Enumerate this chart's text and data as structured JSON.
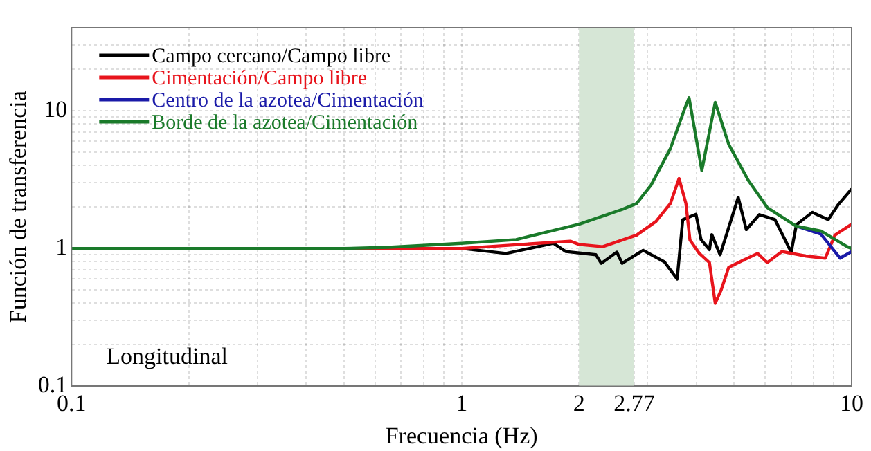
{
  "chart_data": {
    "type": "line",
    "xlabel": "Frecuencia (Hz)",
    "ylabel": "Función de transferencia",
    "log": "xy",
    "grid": true,
    "legend": "top left",
    "line_style": "solid",
    "marker": "none",
    "xlim": [
      0.1,
      10
    ],
    "ylim": [
      0.1,
      40
    ],
    "xticks": [
      0.1,
      {
        "value": 0.2,
        "label": null
      },
      {
        "value": 0.3,
        "label": null
      },
      {
        "value": 0.4,
        "label": null
      },
      {
        "value": 0.5,
        "label": null
      },
      {
        "value": 0.6,
        "label": null
      },
      {
        "value": 0.7,
        "label": null
      },
      {
        "value": 0.8,
        "label": null
      },
      {
        "value": 0.9,
        "label": null
      },
      1,
      2,
      2.77,
      {
        "value": 3,
        "label": null
      },
      {
        "value": 4,
        "label": null
      },
      {
        "value": 5,
        "label": null
      },
      {
        "value": 6,
        "label": null
      },
      {
        "value": 7,
        "label": null
      },
      {
        "value": 8,
        "label": null
      },
      {
        "value": 9,
        "label": null
      },
      10
    ],
    "yticks": [
      0.1,
      {
        "value": 0.2,
        "label": null
      },
      {
        "value": 0.3,
        "label": null
      },
      {
        "value": 0.4,
        "label": null
      },
      {
        "value": 0.5,
        "label": null
      },
      {
        "value": 0.6,
        "label": null
      },
      {
        "value": 0.7,
        "label": null
      },
      {
        "value": 0.8,
        "label": null
      },
      {
        "value": 0.9,
        "label": null
      },
      1,
      {
        "value": 2,
        "label": null
      },
      {
        "value": 3,
        "label": null
      },
      {
        "value": 4,
        "label": null
      },
      {
        "value": 5,
        "label": null
      },
      {
        "value": 6,
        "label": null
      },
      {
        "value": 7,
        "label": null
      },
      {
        "value": 8,
        "label": null
      },
      {
        "value": 9,
        "label": null
      },
      10,
      {
        "value": 20,
        "label": null
      },
      {
        "value": 30,
        "label": null
      },
      {
        "value": 40,
        "label": null
      }
    ],
    "bands": [
      {
        "axis": "x",
        "from": 2,
        "to": 2.77,
        "color": "#d6e6d6"
      }
    ],
    "annotations": [
      "Longitudinal"
    ],
    "series": [
      {
        "name": "Campo cercano/Campo libre",
        "color": "#000000",
        "x": [
          0.1,
          0.5,
          1,
          1.3,
          1.72,
          1.85,
          2.21,
          2.28,
          2.5,
          2.58,
          2.92,
          3.31,
          3.57,
          3.69,
          3.99,
          4.11,
          4.32,
          4.38,
          4.6,
          5.12,
          5.37,
          5.8,
          6.36,
          7.0,
          7.22,
          7.93,
          8.71,
          9.24,
          10
        ],
        "values": [
          1,
          1,
          1,
          0.92,
          1.09,
          0.95,
          0.9,
          0.78,
          0.94,
          0.78,
          0.97,
          0.8,
          0.6,
          1.62,
          1.77,
          1.16,
          0.98,
          1.26,
          0.9,
          2.35,
          1.37,
          1.76,
          1.62,
          0.94,
          1.49,
          1.83,
          1.62,
          2.08,
          2.7
        ]
      },
      {
        "name": "Cimentación/Campo libre",
        "color": "#e8141c",
        "x": [
          0.1,
          0.5,
          1,
          1.9,
          2,
          2.3,
          2.81,
          3.15,
          3.43,
          3.61,
          3.76,
          3.85,
          4.07,
          4.32,
          4.47,
          4.63,
          4.84,
          5.27,
          5.74,
          6.08,
          6.63,
          7.65,
          8.56,
          9.06,
          10
        ],
        "values": [
          1,
          1,
          1,
          1.13,
          1.07,
          1.03,
          1.25,
          1.57,
          2.12,
          3.22,
          2.12,
          1.15,
          0.92,
          0.79,
          0.4,
          0.5,
          0.73,
          0.82,
          0.92,
          0.79,
          0.95,
          0.88,
          0.85,
          1.25,
          1.5
        ]
      },
      {
        "name": "Centro de la azotea/Cimentación",
        "color": "#1a1aa8",
        "x": [
          7.22,
          8.34,
          9.34,
          10
        ],
        "values": [
          1.45,
          1.27,
          0.85,
          0.95
        ]
      },
      {
        "name": "Borde de la azotea/Cimentación",
        "color": "#1a7a2a",
        "x": [
          0.1,
          0.5,
          0.65,
          1,
          1.38,
          2,
          2.58,
          2.81,
          3.06,
          3.43,
          3.74,
          3.83,
          4.13,
          4.47,
          4.84,
          5.43,
          6.08,
          7.22,
          8.34,
          9.74,
          10
        ],
        "values": [
          1,
          1,
          1.02,
          1.09,
          1.16,
          1.5,
          1.92,
          2.12,
          2.88,
          5.3,
          10.5,
          12.4,
          3.67,
          11.5,
          5.7,
          3.13,
          1.98,
          1.45,
          1.34,
          1.03,
          1.0
        ]
      }
    ]
  }
}
